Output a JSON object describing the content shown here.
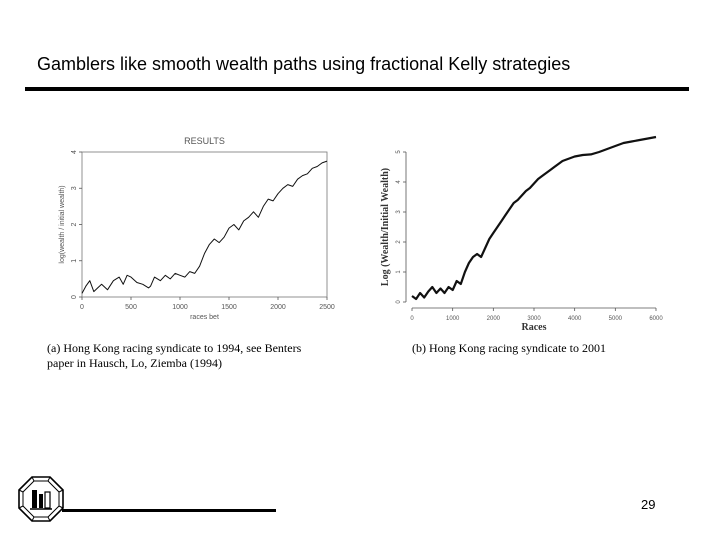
{
  "slide": {
    "title": "Gamblers like smooth wealth paths using fractional Kelly strategies",
    "page_number": "29"
  },
  "captions": {
    "a_line1": "(a) Hong Kong racing syndicate to 1994, see Benters",
    "a_line2": "paper in Hausch, Lo, Ziemba (1994)",
    "b": "(b) Hong Kong racing syndicate to 2001"
  },
  "chart_data": [
    {
      "type": "line",
      "title": "RESULTS",
      "xlabel": "races bet",
      "ylabel": "log(wealth / initial wealth)",
      "xlim": [
        0,
        2500
      ],
      "ylim": [
        0,
        4
      ],
      "xticks": [
        "0",
        "500",
        "1000",
        "1500",
        "2000",
        "2500"
      ],
      "yticks": [
        "0",
        "1",
        "2",
        "3",
        "4"
      ],
      "series": [
        {
          "x": [
            0,
            40,
            80,
            120,
            160,
            200,
            260,
            320,
            380,
            420,
            460,
            500,
            560,
            620,
            680,
            700,
            740,
            800,
            850,
            900,
            950,
            1000,
            1050,
            1100,
            1150,
            1200,
            1250,
            1300,
            1350,
            1400,
            1450,
            1500,
            1550,
            1600,
            1650,
            1700,
            1750,
            1800,
            1850,
            1900,
            1950,
            2000,
            2050,
            2100,
            2150,
            2200,
            2250,
            2300,
            2350,
            2400,
            2450,
            2500
          ],
          "y": [
            0.1,
            0.3,
            0.45,
            0.15,
            0.25,
            0.35,
            0.2,
            0.45,
            0.55,
            0.35,
            0.6,
            0.55,
            0.4,
            0.35,
            0.25,
            0.3,
            0.55,
            0.45,
            0.6,
            0.5,
            0.65,
            0.6,
            0.55,
            0.7,
            0.65,
            0.85,
            1.2,
            1.45,
            1.6,
            1.5,
            1.65,
            1.9,
            2.0,
            1.85,
            2.1,
            2.2,
            2.35,
            2.2,
            2.5,
            2.7,
            2.65,
            2.85,
            3.0,
            3.1,
            3.05,
            3.25,
            3.35,
            3.4,
            3.55,
            3.6,
            3.7,
            3.75
          ]
        }
      ]
    },
    {
      "type": "line",
      "xlabel": "Races",
      "ylabel": "Log (Wealth/Initial Wealth)",
      "xlim": [
        0,
        6000
      ],
      "ylim": [
        0,
        5
      ],
      "xticks": [
        "0",
        "1000",
        "2000",
        "3000",
        "4000",
        "5000",
        "6000"
      ],
      "yticks": [
        "0",
        "1",
        "2",
        "3",
        "4",
        "5"
      ],
      "series": [
        {
          "x": [
            0,
            100,
            200,
            300,
            400,
            500,
            600,
            700,
            800,
            900,
            1000,
            1100,
            1200,
            1300,
            1400,
            1500,
            1600,
            1700,
            1800,
            1900,
            2000,
            2100,
            2200,
            2300,
            2400,
            2500,
            2600,
            2700,
            2800,
            2900,
            3000,
            3100,
            3200,
            3300,
            3400,
            3500,
            3600,
            3700,
            3800,
            3900,
            4000,
            4200,
            4400,
            4600,
            4800,
            5000,
            5200,
            5400,
            5600,
            5800,
            6000
          ],
          "y": [
            0.2,
            0.1,
            0.3,
            0.15,
            0.35,
            0.5,
            0.3,
            0.45,
            0.3,
            0.5,
            0.4,
            0.7,
            0.6,
            1.0,
            1.3,
            1.5,
            1.6,
            1.5,
            1.8,
            2.1,
            2.3,
            2.5,
            2.7,
            2.9,
            3.1,
            3.3,
            3.4,
            3.55,
            3.7,
            3.8,
            3.95,
            4.1,
            4.2,
            4.3,
            4.4,
            4.5,
            4.6,
            4.7,
            4.75,
            4.8,
            4.85,
            4.9,
            4.92,
            5.0,
            5.1,
            5.2,
            5.3,
            5.35,
            5.4,
            5.45,
            5.5
          ]
        }
      ]
    }
  ]
}
